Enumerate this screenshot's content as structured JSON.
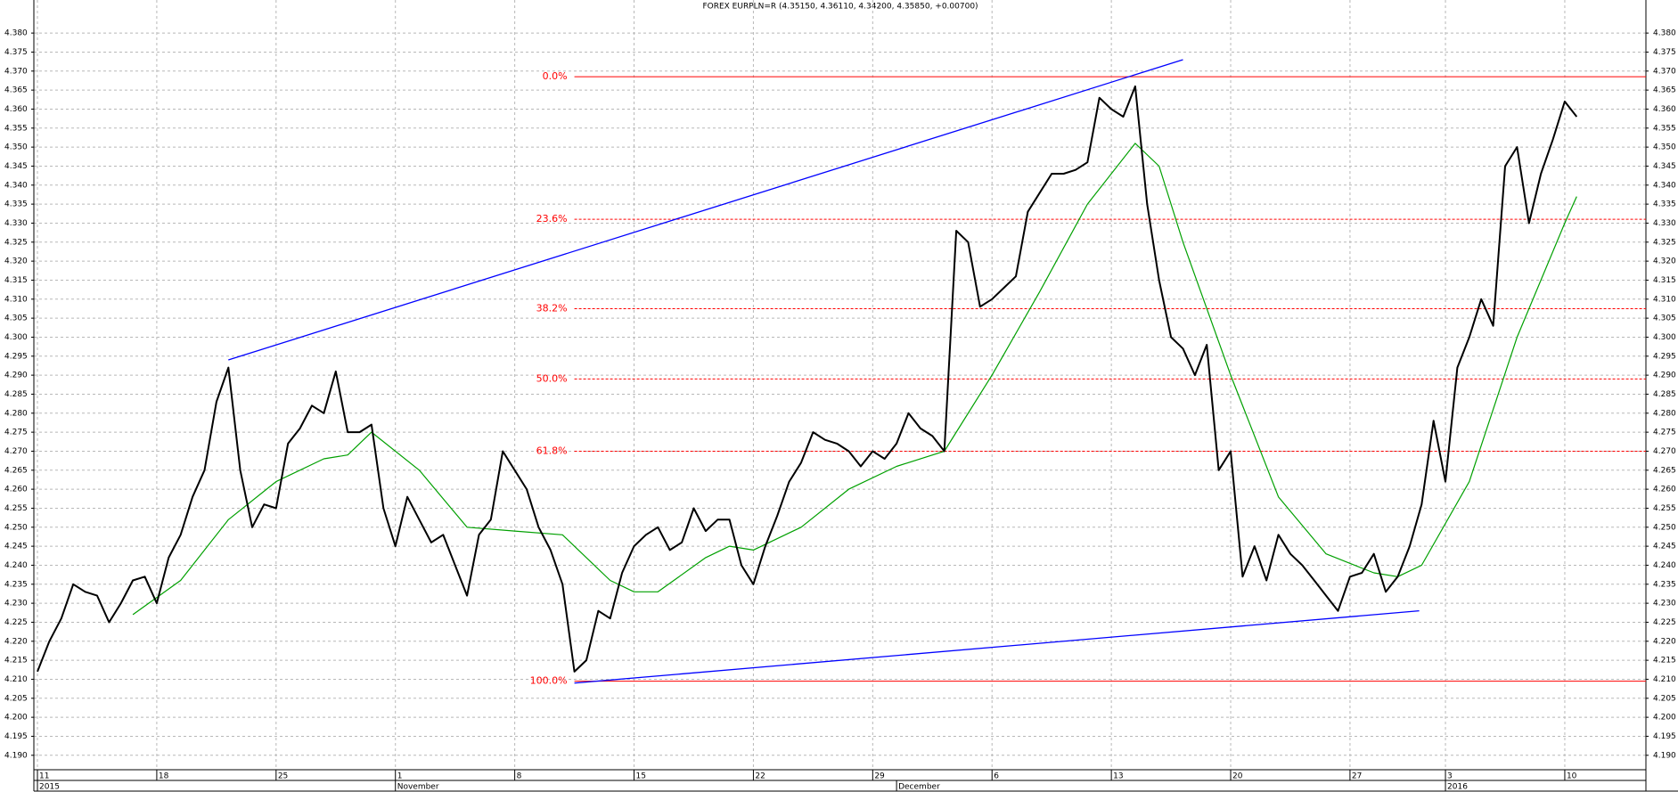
{
  "chart_data": {
    "type": "line",
    "title": "FOREX EURPLN=R (4.35150, 4.36110, 4.34200, 4.35850, +0.00700)",
    "grid": true,
    "xlim": [
      -0.15,
      67.4
    ],
    "ylim": [
      4.1862,
      4.3887
    ],
    "yticks": [
      {
        "value": 4.19,
        "label": "4.190"
      },
      4.195,
      {
        "value": 4.2,
        "label": "4.200"
      },
      4.205,
      {
        "value": 4.21,
        "label": "4.210"
      },
      4.215,
      {
        "value": 4.22,
        "label": "4.220"
      },
      4.225,
      {
        "value": 4.23,
        "label": "4.230"
      },
      4.235,
      {
        "value": 4.24,
        "label": "4.240"
      },
      4.245,
      {
        "value": 4.25,
        "label": "4.250"
      },
      4.255,
      {
        "value": 4.26,
        "label": "4.260"
      },
      4.265,
      {
        "value": 4.27,
        "label": "4.270"
      },
      4.275,
      {
        "value": 4.28,
        "label": "4.280"
      },
      4.285,
      {
        "value": 4.29,
        "label": "4.290"
      },
      4.295,
      {
        "value": 4.3,
        "label": "4.300"
      },
      4.305,
      {
        "value": 4.31,
        "label": "4.310"
      },
      4.315,
      {
        "value": 4.32,
        "label": "4.320"
      },
      4.325,
      {
        "value": 4.33,
        "label": "4.330"
      },
      4.335,
      {
        "value": 4.34,
        "label": "4.340"
      },
      4.345,
      {
        "value": 4.35,
        "label": "4.350"
      },
      4.355,
      {
        "value": 4.36,
        "label": "4.360"
      },
      4.365,
      {
        "value": 4.37,
        "label": "4.370"
      },
      4.375,
      {
        "value": 4.38,
        "label": "4.380"
      }
    ],
    "xticks": [
      {
        "value": 0,
        "label": "11"
      },
      {
        "value": 5,
        "label": "18"
      },
      {
        "value": 10,
        "label": "25"
      },
      {
        "value": 15,
        "label": "1"
      },
      {
        "value": 20,
        "label": "8"
      },
      {
        "value": 25,
        "label": "15"
      },
      {
        "value": 30,
        "label": "22"
      },
      {
        "value": 35,
        "label": "29"
      },
      {
        "value": 40,
        "label": "6"
      },
      {
        "value": 45,
        "label": "13"
      },
      {
        "value": 50,
        "label": "20"
      },
      {
        "value": 55,
        "label": "27"
      },
      {
        "value": 59,
        "label": "3"
      },
      {
        "value": 64,
        "label": "10"
      }
    ],
    "xticks2": [
      {
        "value": 0,
        "label": "2015"
      },
      {
        "value": 15,
        "label": "November"
      },
      {
        "value": 36,
        "label": "December"
      },
      {
        "value": 59,
        "label": "2016"
      }
    ],
    "series": [
      {
        "color": "#000000",
        "x": [
          0,
          0.5,
          1,
          1.5,
          2,
          2.5,
          3,
          3.5,
          4,
          4.5,
          5,
          5.5,
          6,
          6.5,
          7,
          7.5,
          8,
          8.5,
          9,
          9.5,
          10,
          10.5,
          11,
          11.5,
          12,
          12.5,
          13,
          13.5,
          14,
          14.5,
          15,
          15.5,
          16,
          16.5,
          17,
          17.5,
          18,
          18.5,
          19,
          19.5,
          20,
          20.5,
          21,
          21.5,
          22,
          22.5,
          23,
          23.5,
          24,
          24.5,
          25,
          25.5,
          26,
          26.5,
          27,
          27.5,
          28,
          28.5,
          29,
          29.5,
          30,
          30.5,
          31,
          31.5,
          32,
          32.5,
          33,
          33.5,
          34,
          34.5,
          35,
          35.5,
          36,
          36.5,
          37,
          37.5,
          38,
          38.5,
          39,
          39.5,
          40,
          40.5,
          41,
          41.5,
          42,
          42.5,
          43,
          43.5,
          44,
          44.5,
          45,
          45.5,
          46,
          46.5,
          47,
          47.5,
          48,
          48.5,
          49,
          49.5,
          50,
          50.5,
          51,
          51.5,
          52,
          52.5,
          53,
          53.5,
          54,
          54.5,
          55,
          55.5,
          56,
          56.5,
          57,
          57.5,
          58,
          58.5,
          59,
          59.5,
          60,
          60.5,
          61,
          61.5,
          62,
          62.5,
          63,
          63.5,
          64,
          64.5
        ],
        "values": [
          4.212,
          4.22,
          4.226,
          4.235,
          4.233,
          4.232,
          4.225,
          4.23,
          4.236,
          4.237,
          4.23,
          4.242,
          4.248,
          4.258,
          4.265,
          4.283,
          4.292,
          4.265,
          4.25,
          4.256,
          4.255,
          4.272,
          4.276,
          4.282,
          4.28,
          4.291,
          4.275,
          4.275,
          4.277,
          4.255,
          4.245,
          4.258,
          4.252,
          4.246,
          4.248,
          4.24,
          4.232,
          4.248,
          4.252,
          4.27,
          4.265,
          4.26,
          4.25,
          4.244,
          4.235,
          4.212,
          4.215,
          4.228,
          4.226,
          4.238,
          4.245,
          4.248,
          4.25,
          4.244,
          4.246,
          4.255,
          4.249,
          4.252,
          4.252,
          4.24,
          4.235,
          4.245,
          4.253,
          4.262,
          4.267,
          4.275,
          4.273,
          4.272,
          4.27,
          4.266,
          4.27,
          4.268,
          4.272,
          4.28,
          4.276,
          4.274,
          4.27,
          4.328,
          4.325,
          4.308,
          4.31,
          4.313,
          4.316,
          4.333,
          4.338,
          4.343,
          4.343,
          4.344,
          4.346,
          4.363,
          4.36,
          4.358,
          4.366,
          4.335,
          4.315,
          4.3,
          4.297,
          4.29,
          4.298,
          4.265,
          4.27,
          4.237,
          4.245,
          4.236,
          4.248,
          4.243,
          4.24,
          4.236,
          4.232,
          4.228,
          4.237,
          4.238,
          4.243,
          4.233,
          4.237,
          4.245,
          4.256,
          4.278,
          4.262,
          4.292,
          4.3,
          4.31,
          4.303,
          4.345,
          4.35,
          4.33,
          4.343,
          4.352,
          4.362,
          4.358
        ]
      },
      {
        "color": "#00a000",
        "x": [
          4,
          6,
          8,
          10,
          12,
          13,
          14,
          16,
          18,
          20,
          22,
          24,
          25,
          26,
          28,
          29,
          30,
          32,
          34,
          36,
          38,
          40,
          42,
          44,
          46,
          47,
          48,
          50,
          52,
          54,
          56,
          57,
          58,
          60,
          62,
          64,
          64.5
        ],
        "values": [
          4.227,
          4.236,
          4.252,
          4.262,
          4.268,
          4.269,
          4.275,
          4.265,
          4.25,
          4.249,
          4.248,
          4.236,
          4.233,
          4.233,
          4.242,
          4.245,
          4.244,
          4.25,
          4.26,
          4.266,
          4.27,
          4.29,
          4.312,
          4.335,
          4.351,
          4.345,
          4.325,
          4.29,
          4.258,
          4.243,
          4.238,
          4.237,
          4.24,
          4.262,
          4.3,
          4.33,
          4.337
        ]
      }
    ],
    "trendlines": [
      {
        "color": "#0000ff",
        "x": [
          8,
          48
        ],
        "y": [
          4.294,
          4.373
        ]
      },
      {
        "color": "#0000ff",
        "x": [
          22.5,
          57.9
        ],
        "y": [
          4.209,
          4.228
        ]
      }
    ],
    "fibonacci": {
      "color": "#ff0000",
      "start": 22.5,
      "levels": [
        {
          "label": "0.0%",
          "value": 4.3685,
          "dashed": false
        },
        {
          "label": "23.6%",
          "value": 4.331,
          "dashed": true
        },
        {
          "label": "38.2%",
          "value": 4.3075,
          "dashed": true
        },
        {
          "label": "50.0%",
          "value": 4.289,
          "dashed": true
        },
        {
          "label": "61.8%",
          "value": 4.27,
          "dashed": true
        },
        {
          "label": "100.0%",
          "value": 4.2095,
          "dashed": false
        }
      ]
    }
  }
}
